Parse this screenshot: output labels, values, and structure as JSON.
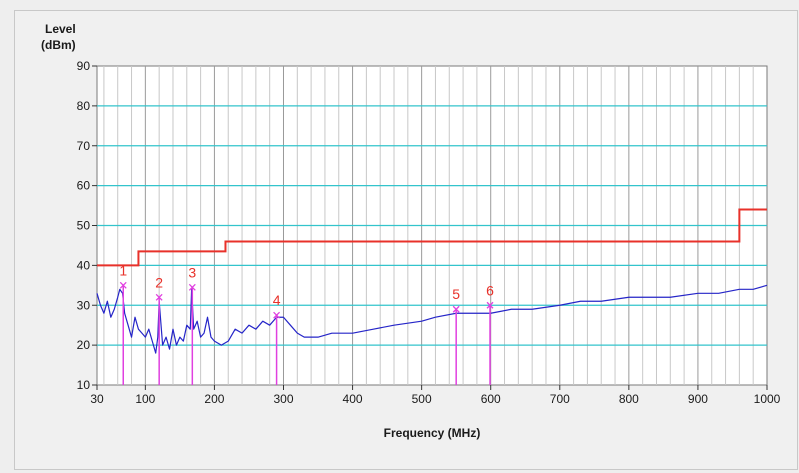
{
  "chart_data": {
    "type": "line",
    "ylabel_line1": "Level",
    "ylabel_line2": "(dBm)",
    "xlabel": "Frequency (MHz)",
    "ylim": [
      10,
      90
    ],
    "yticks": [
      10,
      20,
      30,
      40,
      50,
      60,
      70,
      80,
      90
    ],
    "xlim": [
      30,
      1000
    ],
    "xticks": [
      30,
      100,
      200,
      300,
      400,
      500,
      600,
      700,
      800,
      900,
      1000
    ],
    "grid": true,
    "colors": {
      "limit": "#e8312a",
      "trace": "#2525c8",
      "marker": "#e040e0",
      "marker_label": "#e8312a",
      "major_grid": "#33c4cc",
      "minor_grid": "#c8c8c8"
    },
    "limit_line": {
      "x": [
        30,
        90,
        90,
        216,
        216,
        960,
        960,
        1000
      ],
      "y": [
        40,
        40,
        43.5,
        43.5,
        46,
        46,
        54,
        54
      ]
    },
    "trace": {
      "x": [
        30,
        35,
        40,
        45,
        50,
        55,
        60,
        63,
        67,
        70,
        75,
        80,
        85,
        90,
        95,
        100,
        105,
        110,
        115,
        118,
        120,
        125,
        130,
        135,
        140,
        145,
        150,
        155,
        160,
        165,
        167,
        170,
        175,
        180,
        185,
        190,
        195,
        200,
        210,
        220,
        230,
        240,
        250,
        260,
        270,
        280,
        290,
        300,
        310,
        320,
        330,
        350,
        370,
        400,
        430,
        460,
        500,
        520,
        550,
        570,
        600,
        630,
        660,
        700,
        730,
        760,
        800,
        830,
        860,
        900,
        930,
        960,
        980,
        1000
      ],
      "y": [
        33,
        30,
        28,
        31,
        27,
        29,
        32,
        34,
        33,
        28,
        25,
        22,
        27,
        24,
        23,
        22,
        24,
        21,
        18,
        22,
        31,
        20,
        22,
        19,
        24,
        20,
        22,
        21,
        25,
        24,
        34,
        24,
        26,
        22,
        23,
        27,
        22,
        21,
        20,
        21,
        24,
        23,
        25,
        24,
        26,
        25,
        27,
        27,
        25,
        23,
        22,
        22,
        23,
        23,
        24,
        25,
        26,
        27,
        28,
        28,
        28,
        29,
        29,
        30,
        31,
        31,
        32,
        32,
        32,
        33,
        33,
        34,
        34,
        35
      ]
    },
    "markers": [
      {
        "label": "1",
        "freq": 68,
        "level": 35
      },
      {
        "label": "2",
        "freq": 120,
        "level": 32
      },
      {
        "label": "3",
        "freq": 168,
        "level": 34.5
      },
      {
        "label": "4",
        "freq": 290,
        "level": 27.5
      },
      {
        "label": "5",
        "freq": 550,
        "level": 29
      },
      {
        "label": "6",
        "freq": 599,
        "level": 30
      }
    ]
  }
}
